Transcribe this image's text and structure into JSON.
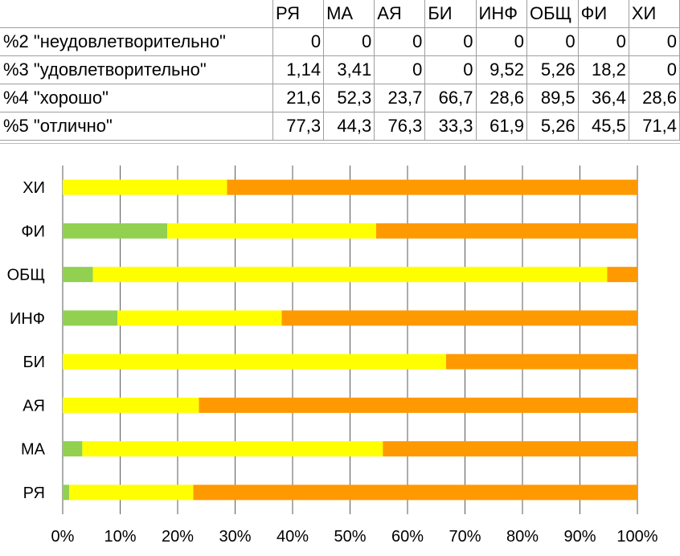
{
  "table": {
    "columns": [
      "РЯ",
      "МА",
      "АЯ",
      "БИ",
      "ИНФ",
      "ОБЩ",
      "ФИ",
      "ХИ"
    ],
    "rows": [
      {
        "label": "%2 \"неудовлетворительно\"",
        "values": [
          "0",
          "0",
          "0",
          "0",
          "0",
          "0",
          "0",
          "0"
        ]
      },
      {
        "label": "%3 \"удовлетворительно\"",
        "values": [
          "1,14",
          "3,41",
          "0",
          "0",
          "9,52",
          "5,26",
          "18,2",
          "0"
        ]
      },
      {
        "label": "%4 \"хорошо\"",
        "values": [
          "21,6",
          "52,3",
          "23,7",
          "66,7",
          "28,6",
          "89,5",
          "36,4",
          "28,6"
        ]
      },
      {
        "label": "%5 \"отлично\"",
        "values": [
          "77,3",
          "44,3",
          "76,3",
          "33,3",
          "61,9",
          "5,26",
          "45,5",
          "71,4"
        ]
      }
    ]
  },
  "chart_data": {
    "type": "bar",
    "orientation": "horizontal",
    "stacked": "percent",
    "categories": [
      "РЯ",
      "МА",
      "АЯ",
      "БИ",
      "ИНФ",
      "ОБЩ",
      "ФИ",
      "ХИ"
    ],
    "series": [
      {
        "name": "%3 \"удовлетворительно\"",
        "color": "#92d050",
        "values": [
          1.14,
          3.41,
          0,
          0,
          9.52,
          5.26,
          18.2,
          0
        ]
      },
      {
        "name": "%4 \"хорошо\"",
        "color": "#ffff00",
        "values": [
          21.6,
          52.3,
          23.7,
          66.7,
          28.6,
          89.5,
          36.4,
          28.6
        ]
      },
      {
        "name": "%5 \"отлично\"",
        "color": "#ff9900",
        "values": [
          77.3,
          44.3,
          76.3,
          33.3,
          61.9,
          5.26,
          45.5,
          71.4
        ]
      }
    ],
    "x_ticks": [
      "0%",
      "10%",
      "20%",
      "30%",
      "40%",
      "50%",
      "60%",
      "70%",
      "80%",
      "90%",
      "100%"
    ],
    "xlim": [
      0,
      100
    ],
    "grid": true,
    "legend": "none"
  }
}
